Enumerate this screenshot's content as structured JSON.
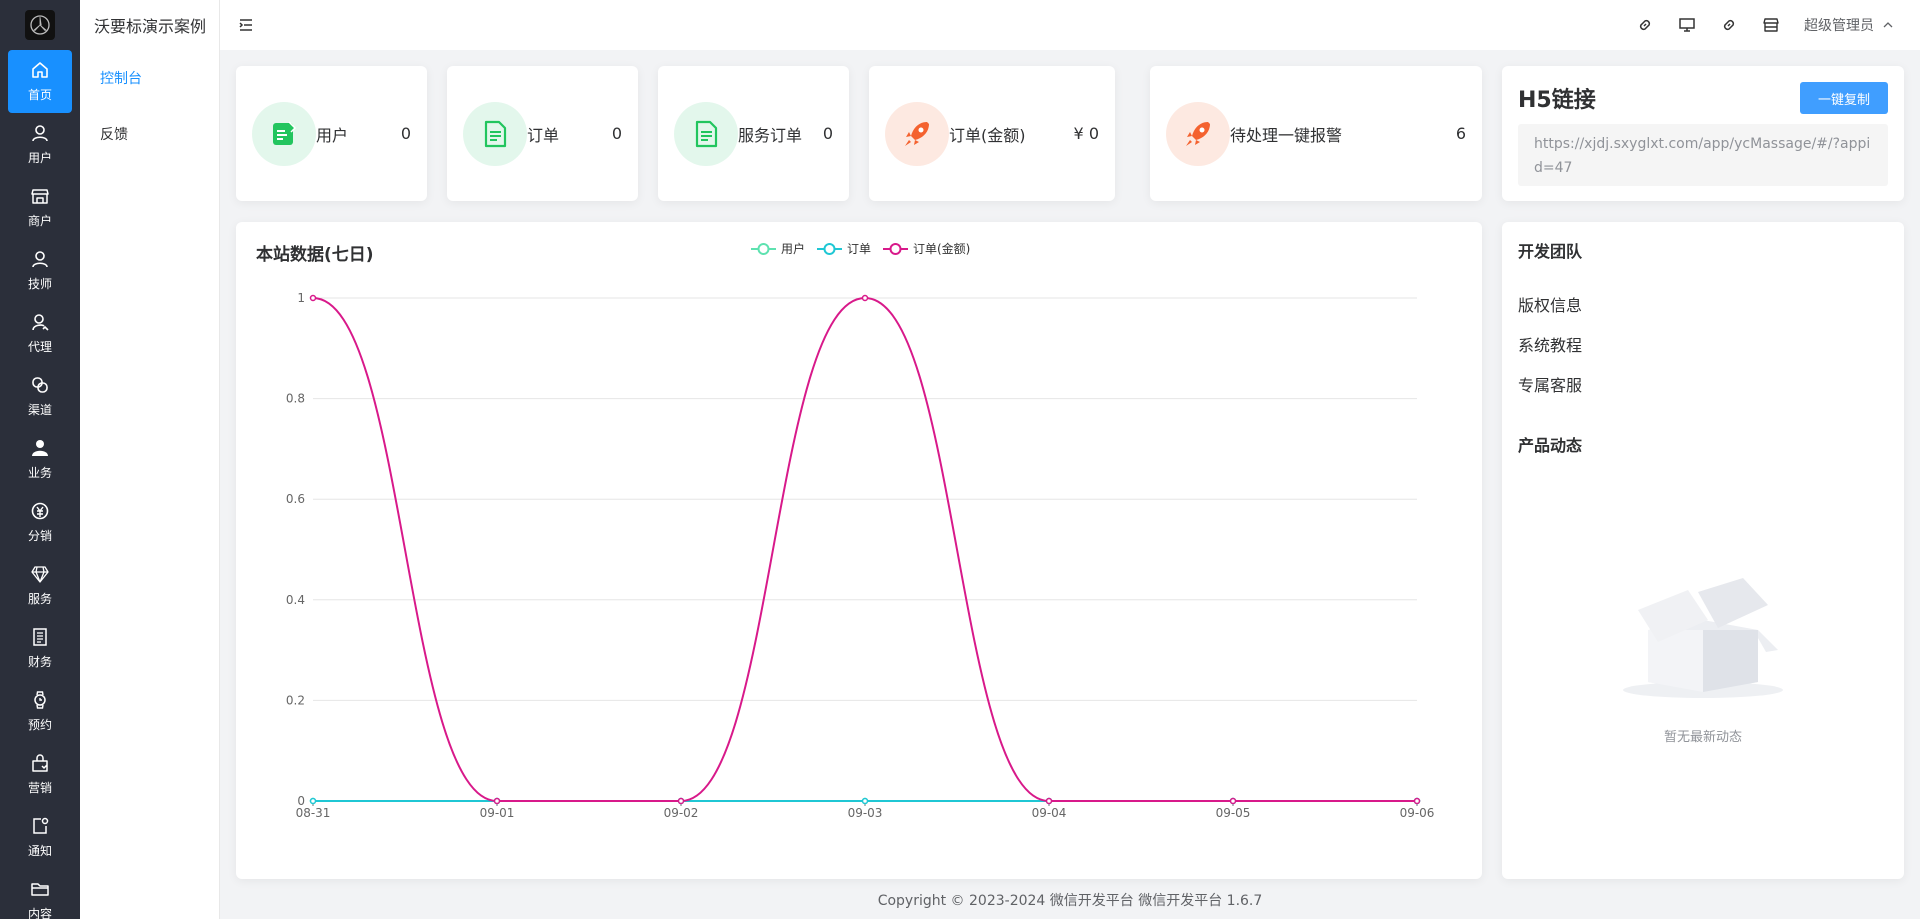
{
  "rail": {
    "items": [
      {
        "label": "首页",
        "icon": "home-icon",
        "active": true
      },
      {
        "label": "用户",
        "icon": "user-icon"
      },
      {
        "label": "商户",
        "icon": "shop-icon"
      },
      {
        "label": "技师",
        "icon": "technician-icon"
      },
      {
        "label": "代理",
        "icon": "agent-icon"
      },
      {
        "label": "渠道",
        "icon": "channel-icon"
      },
      {
        "label": "业务",
        "icon": "business-icon"
      },
      {
        "label": "分销",
        "icon": "distribution-icon"
      },
      {
        "label": "服务",
        "icon": "diamond-icon"
      },
      {
        "label": "财务",
        "icon": "ledger-icon"
      },
      {
        "label": "预约",
        "icon": "watch-icon"
      },
      {
        "label": "营销",
        "icon": "marketing-icon"
      },
      {
        "label": "通知",
        "icon": "notice-icon"
      },
      {
        "label": "内容",
        "icon": "folder-icon"
      }
    ]
  },
  "subnav": {
    "title": "沃要标演示案例",
    "items": [
      {
        "label": "控制台",
        "active": true
      },
      {
        "label": "反馈"
      }
    ]
  },
  "header": {
    "icons": [
      "link-icon",
      "monitor-icon",
      "link-icon",
      "store-icon"
    ],
    "admin_label": "超级管理员"
  },
  "stats": [
    {
      "label": "用户",
      "value": "0",
      "icon": "edit-doc-icon",
      "color": "green"
    },
    {
      "label": "订单",
      "value": "0",
      "icon": "document-icon",
      "color": "green"
    },
    {
      "label": "服务订单",
      "value": "0",
      "icon": "document-icon",
      "color": "green"
    },
    {
      "label": "订单(金额)",
      "value": "¥ 0",
      "icon": "rocket-icon",
      "color": "orange"
    },
    {
      "label": "待处理一键报警",
      "value": "6",
      "icon": "rocket-icon",
      "color": "orange"
    }
  ],
  "h5": {
    "title": "H5链接",
    "button": "一键复制",
    "url": "https://xjdj.sxyglxt.com/app/ycMassage/#/?appid=47"
  },
  "chart_data": {
    "type": "line",
    "title": "本站数据(七日)",
    "categories": [
      "08-31",
      "09-01",
      "09-02",
      "09-03",
      "09-04",
      "09-05",
      "09-06"
    ],
    "series": [
      {
        "name": "用户",
        "color": "#5ee2b0",
        "values": [
          0,
          0,
          0,
          0,
          0,
          0,
          0
        ]
      },
      {
        "name": "订单",
        "color": "#1fc7d4",
        "values": [
          0,
          0,
          0,
          0,
          0,
          0,
          0
        ]
      },
      {
        "name": "订单(金额)",
        "color": "#d8198a",
        "values": [
          1,
          0,
          0,
          1,
          0,
          0,
          0
        ]
      }
    ],
    "yticks": [
      "0",
      "0.2",
      "0.4",
      "0.6",
      "0.8",
      "1"
    ],
    "ylim": [
      0,
      1
    ],
    "smooth": true,
    "grid": true,
    "legend": "top-center"
  },
  "side": {
    "dev_team_title": "开发团队",
    "links": [
      "版权信息",
      "系统教程",
      "专属客服"
    ],
    "news_title": "产品动态",
    "empty_text": "暂无最新动态"
  },
  "footer": {
    "text": "Copyright © 2023-2024 微信开发平台  微信开发平台 1.6.7"
  }
}
